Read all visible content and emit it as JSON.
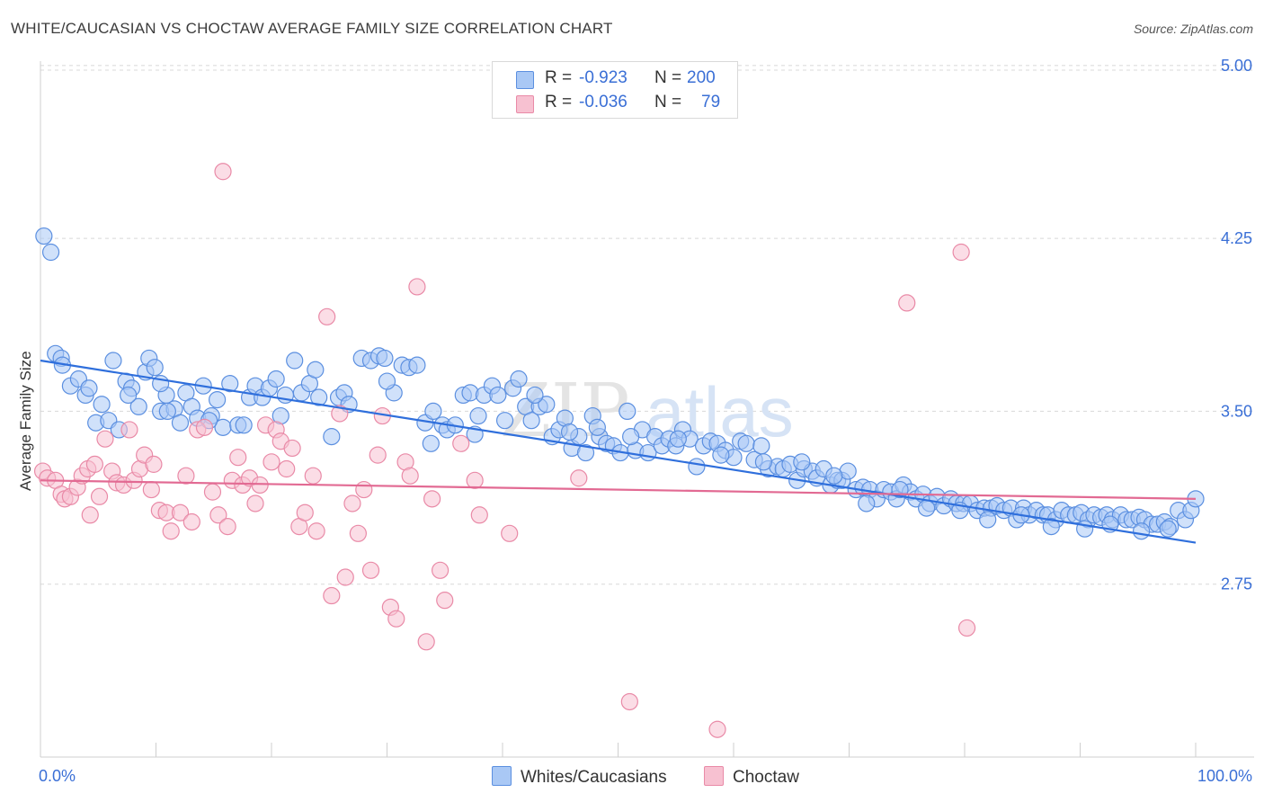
{
  "header": {
    "title": "WHITE/CAUCASIAN VS CHOCTAW AVERAGE FAMILY SIZE CORRELATION CHART",
    "source": "Source: ZipAtlas.com"
  },
  "legend": {
    "rows": [
      {
        "r_label": "R =",
        "r_value": "-0.923",
        "n_label": "N =",
        "n_value": "200"
      },
      {
        "r_label": "R =",
        "r_value": "-0.036",
        "n_label": "N =",
        "n_value": "79"
      }
    ],
    "bottom": [
      "Whites/Caucasians",
      "Choctaw"
    ]
  },
  "colors": {
    "blue_fill": "#a9c8f5",
    "blue_stroke": "#5b8fe0",
    "blue_line": "#2f6fdc",
    "pink_fill": "#f7c1d1",
    "pink_stroke": "#e98aa7",
    "pink_line": "#e26a93",
    "tick_text": "#3a6fd6",
    "grid": "#d8d8d8"
  },
  "watermark": {
    "zip": "ZIP",
    "atlas": "atlas"
  },
  "chart_data": {
    "type": "scatter",
    "title": "WHITE/CAUCASIAN VS CHOCTAW AVERAGE FAMILY SIZE CORRELATION CHART",
    "xlabel": "",
    "ylabel": "Average Family Size",
    "xlim": [
      0,
      100
    ],
    "ylim": [
      2.0,
      5.05
    ],
    "x_tick_labels": [
      "0.0%",
      "100.0%"
    ],
    "y_ticks": [
      2.75,
      3.5,
      4.25,
      5.0
    ],
    "y_tick_labels": [
      "2.75",
      "3.50",
      "4.25",
      "5.00"
    ],
    "grid": true,
    "series": [
      {
        "name": "Whites/Caucasians",
        "r": -0.923,
        "n": 200,
        "trend": {
          "x": [
            0,
            100
          ],
          "y": [
            3.72,
            2.93
          ]
        },
        "points": [
          [
            0.3,
            4.26
          ],
          [
            0.9,
            4.19
          ],
          [
            1.3,
            3.75
          ],
          [
            1.8,
            3.73
          ],
          [
            1.9,
            3.7
          ],
          [
            2.6,
            3.61
          ],
          [
            3.3,
            3.64
          ],
          [
            3.9,
            3.57
          ],
          [
            4.2,
            3.6
          ],
          [
            4.8,
            3.45
          ],
          [
            5.3,
            3.53
          ],
          [
            5.9,
            3.46
          ],
          [
            6.3,
            3.72
          ],
          [
            6.8,
            3.42
          ],
          [
            7.4,
            3.63
          ],
          [
            7.9,
            3.6
          ],
          [
            8.5,
            3.52
          ],
          [
            9.1,
            3.67
          ],
          [
            9.4,
            3.73
          ],
          [
            9.9,
            3.69
          ],
          [
            10.4,
            3.5
          ],
          [
            10.9,
            3.57
          ],
          [
            11.6,
            3.51
          ],
          [
            12.1,
            3.45
          ],
          [
            12.6,
            3.58
          ],
          [
            13.1,
            3.52
          ],
          [
            13.6,
            3.47
          ],
          [
            14.1,
            3.61
          ],
          [
            14.8,
            3.48
          ],
          [
            15.3,
            3.55
          ],
          [
            15.8,
            3.43
          ],
          [
            16.4,
            3.62
          ],
          [
            17.1,
            3.44
          ],
          [
            17.6,
            3.44
          ],
          [
            18.1,
            3.56
          ],
          [
            18.6,
            3.61
          ],
          [
            19.2,
            3.56
          ],
          [
            19.8,
            3.6
          ],
          [
            20.4,
            3.64
          ],
          [
            21.2,
            3.57
          ],
          [
            22.0,
            3.72
          ],
          [
            22.6,
            3.58
          ],
          [
            23.3,
            3.62
          ],
          [
            23.8,
            3.68
          ],
          [
            24.1,
            3.56
          ],
          [
            25.2,
            3.39
          ],
          [
            25.8,
            3.56
          ],
          [
            26.3,
            3.58
          ],
          [
            27.8,
            3.73
          ],
          [
            28.6,
            3.72
          ],
          [
            29.3,
            3.74
          ],
          [
            29.8,
            3.73
          ],
          [
            30.6,
            3.58
          ],
          [
            31.3,
            3.7
          ],
          [
            31.9,
            3.69
          ],
          [
            32.6,
            3.7
          ],
          [
            33.3,
            3.45
          ],
          [
            34.0,
            3.5
          ],
          [
            34.8,
            3.44
          ],
          [
            35.2,
            3.42
          ],
          [
            35.9,
            3.44
          ],
          [
            36.6,
            3.57
          ],
          [
            37.2,
            3.58
          ],
          [
            37.9,
            3.48
          ],
          [
            38.4,
            3.57
          ],
          [
            39.1,
            3.61
          ],
          [
            39.6,
            3.57
          ],
          [
            40.2,
            3.46
          ],
          [
            40.9,
            3.6
          ],
          [
            41.4,
            3.64
          ],
          [
            42.0,
            3.52
          ],
          [
            42.5,
            3.46
          ],
          [
            43.2,
            3.52
          ],
          [
            43.8,
            3.53
          ],
          [
            44.3,
            3.39
          ],
          [
            44.9,
            3.42
          ],
          [
            45.4,
            3.47
          ],
          [
            46.0,
            3.34
          ],
          [
            46.6,
            3.39
          ],
          [
            47.2,
            3.32
          ],
          [
            47.8,
            3.48
          ],
          [
            48.4,
            3.39
          ],
          [
            49.0,
            3.36
          ],
          [
            49.6,
            3.35
          ],
          [
            50.2,
            3.32
          ],
          [
            50.8,
            3.5
          ],
          [
            51.5,
            3.33
          ],
          [
            52.1,
            3.42
          ],
          [
            52.6,
            3.32
          ],
          [
            53.2,
            3.39
          ],
          [
            53.8,
            3.35
          ],
          [
            54.4,
            3.38
          ],
          [
            55.0,
            3.35
          ],
          [
            55.6,
            3.42
          ],
          [
            56.2,
            3.38
          ],
          [
            56.8,
            3.26
          ],
          [
            57.4,
            3.35
          ],
          [
            58.0,
            3.37
          ],
          [
            58.6,
            3.36
          ],
          [
            59.3,
            3.33
          ],
          [
            60.0,
            3.3
          ],
          [
            60.6,
            3.37
          ],
          [
            61.1,
            3.36
          ],
          [
            61.8,
            3.29
          ],
          [
            62.4,
            3.35
          ],
          [
            63.0,
            3.25
          ],
          [
            63.8,
            3.26
          ],
          [
            64.3,
            3.25
          ],
          [
            64.9,
            3.27
          ],
          [
            65.5,
            3.2
          ],
          [
            66.1,
            3.25
          ],
          [
            66.8,
            3.24
          ],
          [
            67.2,
            3.21
          ],
          [
            67.8,
            3.25
          ],
          [
            68.4,
            3.18
          ],
          [
            69.0,
            3.2
          ],
          [
            69.4,
            3.2
          ],
          [
            69.9,
            3.24
          ],
          [
            70.6,
            3.16
          ],
          [
            71.2,
            3.17
          ],
          [
            71.8,
            3.16
          ],
          [
            72.4,
            3.12
          ],
          [
            73.0,
            3.16
          ],
          [
            73.6,
            3.15
          ],
          [
            74.1,
            3.12
          ],
          [
            74.7,
            3.18
          ],
          [
            75.3,
            3.15
          ],
          [
            75.8,
            3.12
          ],
          [
            76.4,
            3.14
          ],
          [
            77.0,
            3.1
          ],
          [
            77.6,
            3.13
          ],
          [
            78.2,
            3.09
          ],
          [
            78.8,
            3.12
          ],
          [
            79.3,
            3.1
          ],
          [
            79.9,
            3.1
          ],
          [
            80.5,
            3.1
          ],
          [
            81.1,
            3.07
          ],
          [
            81.7,
            3.08
          ],
          [
            82.3,
            3.08
          ],
          [
            82.8,
            3.09
          ],
          [
            83.4,
            3.07
          ],
          [
            84.0,
            3.08
          ],
          [
            84.5,
            3.03
          ],
          [
            85.1,
            3.08
          ],
          [
            85.6,
            3.05
          ],
          [
            86.2,
            3.07
          ],
          [
            86.8,
            3.05
          ],
          [
            87.2,
            3.05
          ],
          [
            87.9,
            3.03
          ],
          [
            88.4,
            3.07
          ],
          [
            89.0,
            3.05
          ],
          [
            89.6,
            3.05
          ],
          [
            90.1,
            3.06
          ],
          [
            90.7,
            3.03
          ],
          [
            91.2,
            3.05
          ],
          [
            91.8,
            3.04
          ],
          [
            92.3,
            3.05
          ],
          [
            92.8,
            3.03
          ],
          [
            93.5,
            3.05
          ],
          [
            94.0,
            3.03
          ],
          [
            94.5,
            3.03
          ],
          [
            95.1,
            3.04
          ],
          [
            95.6,
            3.03
          ],
          [
            96.2,
            3.01
          ],
          [
            96.7,
            3.01
          ],
          [
            97.3,
            3.02
          ],
          [
            97.8,
            3.0
          ],
          [
            98.5,
            3.07
          ],
          [
            99.1,
            3.03
          ],
          [
            99.6,
            3.07
          ],
          [
            10.4,
            3.62
          ],
          [
            11.0,
            3.5
          ],
          [
            7.6,
            3.57
          ],
          [
            14.6,
            3.46
          ],
          [
            20.8,
            3.48
          ],
          [
            26.7,
            3.53
          ],
          [
            30.0,
            3.63
          ],
          [
            33.8,
            3.36
          ],
          [
            37.6,
            3.4
          ],
          [
            42.8,
            3.57
          ],
          [
            45.8,
            3.41
          ],
          [
            48.2,
            3.43
          ],
          [
            51.1,
            3.39
          ],
          [
            55.2,
            3.38
          ],
          [
            58.9,
            3.31
          ],
          [
            62.6,
            3.28
          ],
          [
            65.9,
            3.28
          ],
          [
            68.7,
            3.22
          ],
          [
            71.5,
            3.1
          ],
          [
            74.4,
            3.16
          ],
          [
            76.7,
            3.08
          ],
          [
            79.6,
            3.07
          ],
          [
            82.0,
            3.03
          ],
          [
            84.9,
            3.05
          ],
          [
            87.5,
            3.0
          ],
          [
            90.4,
            2.99
          ],
          [
            92.6,
            3.01
          ],
          [
            95.3,
            2.98
          ],
          [
            97.6,
            2.99
          ],
          [
            100.0,
            3.12
          ]
        ]
      },
      {
        "name": "Choctaw",
        "r": -0.036,
        "n": 79,
        "trend": {
          "x": [
            0,
            100
          ],
          "y": [
            3.2,
            3.12
          ]
        },
        "points": [
          [
            0.2,
            3.24
          ],
          [
            0.6,
            3.21
          ],
          [
            1.3,
            3.2
          ],
          [
            1.8,
            3.14
          ],
          [
            2.1,
            3.12
          ],
          [
            2.6,
            3.13
          ],
          [
            3.2,
            3.17
          ],
          [
            3.6,
            3.22
          ],
          [
            4.1,
            3.25
          ],
          [
            4.3,
            3.05
          ],
          [
            4.7,
            3.27
          ],
          [
            5.1,
            3.13
          ],
          [
            5.6,
            3.38
          ],
          [
            6.2,
            3.24
          ],
          [
            6.6,
            3.19
          ],
          [
            7.2,
            3.18
          ],
          [
            7.7,
            3.42
          ],
          [
            8.1,
            3.2
          ],
          [
            8.6,
            3.25
          ],
          [
            9.0,
            3.31
          ],
          [
            9.6,
            3.16
          ],
          [
            9.8,
            3.27
          ],
          [
            10.3,
            3.07
          ],
          [
            10.9,
            3.06
          ],
          [
            11.3,
            2.98
          ],
          [
            12.1,
            3.06
          ],
          [
            12.6,
            3.22
          ],
          [
            13.1,
            3.02
          ],
          [
            13.6,
            3.42
          ],
          [
            14.2,
            3.43
          ],
          [
            14.9,
            3.15
          ],
          [
            15.4,
            3.05
          ],
          [
            15.8,
            4.54
          ],
          [
            16.2,
            3.0
          ],
          [
            16.6,
            3.2
          ],
          [
            17.1,
            3.3
          ],
          [
            17.5,
            3.18
          ],
          [
            18.1,
            3.21
          ],
          [
            18.6,
            3.1
          ],
          [
            19.0,
            3.18
          ],
          [
            19.5,
            3.44
          ],
          [
            20.0,
            3.28
          ],
          [
            20.4,
            3.42
          ],
          [
            20.8,
            3.37
          ],
          [
            21.3,
            3.25
          ],
          [
            21.8,
            3.34
          ],
          [
            22.4,
            3.0
          ],
          [
            22.9,
            3.06
          ],
          [
            23.6,
            3.22
          ],
          [
            23.9,
            2.98
          ],
          [
            24.8,
            3.91
          ],
          [
            25.2,
            2.7
          ],
          [
            25.9,
            3.49
          ],
          [
            26.4,
            2.78
          ],
          [
            27.0,
            3.1
          ],
          [
            27.5,
            2.97
          ],
          [
            28.0,
            3.16
          ],
          [
            28.6,
            2.81
          ],
          [
            29.2,
            3.31
          ],
          [
            29.6,
            3.48
          ],
          [
            30.3,
            2.65
          ],
          [
            30.8,
            2.6
          ],
          [
            31.6,
            3.28
          ],
          [
            32.0,
            3.22
          ],
          [
            32.6,
            4.04
          ],
          [
            33.4,
            2.5
          ],
          [
            33.9,
            3.12
          ],
          [
            34.6,
            2.81
          ],
          [
            35.0,
            2.68
          ],
          [
            36.4,
            3.36
          ],
          [
            37.6,
            3.2
          ],
          [
            40.6,
            2.97
          ],
          [
            46.6,
            3.21
          ],
          [
            51.0,
            2.24
          ],
          [
            58.6,
            2.12
          ],
          [
            75.0,
            3.97
          ],
          [
            79.7,
            4.19
          ],
          [
            80.2,
            2.56
          ],
          [
            38.0,
            3.05
          ]
        ]
      }
    ]
  }
}
